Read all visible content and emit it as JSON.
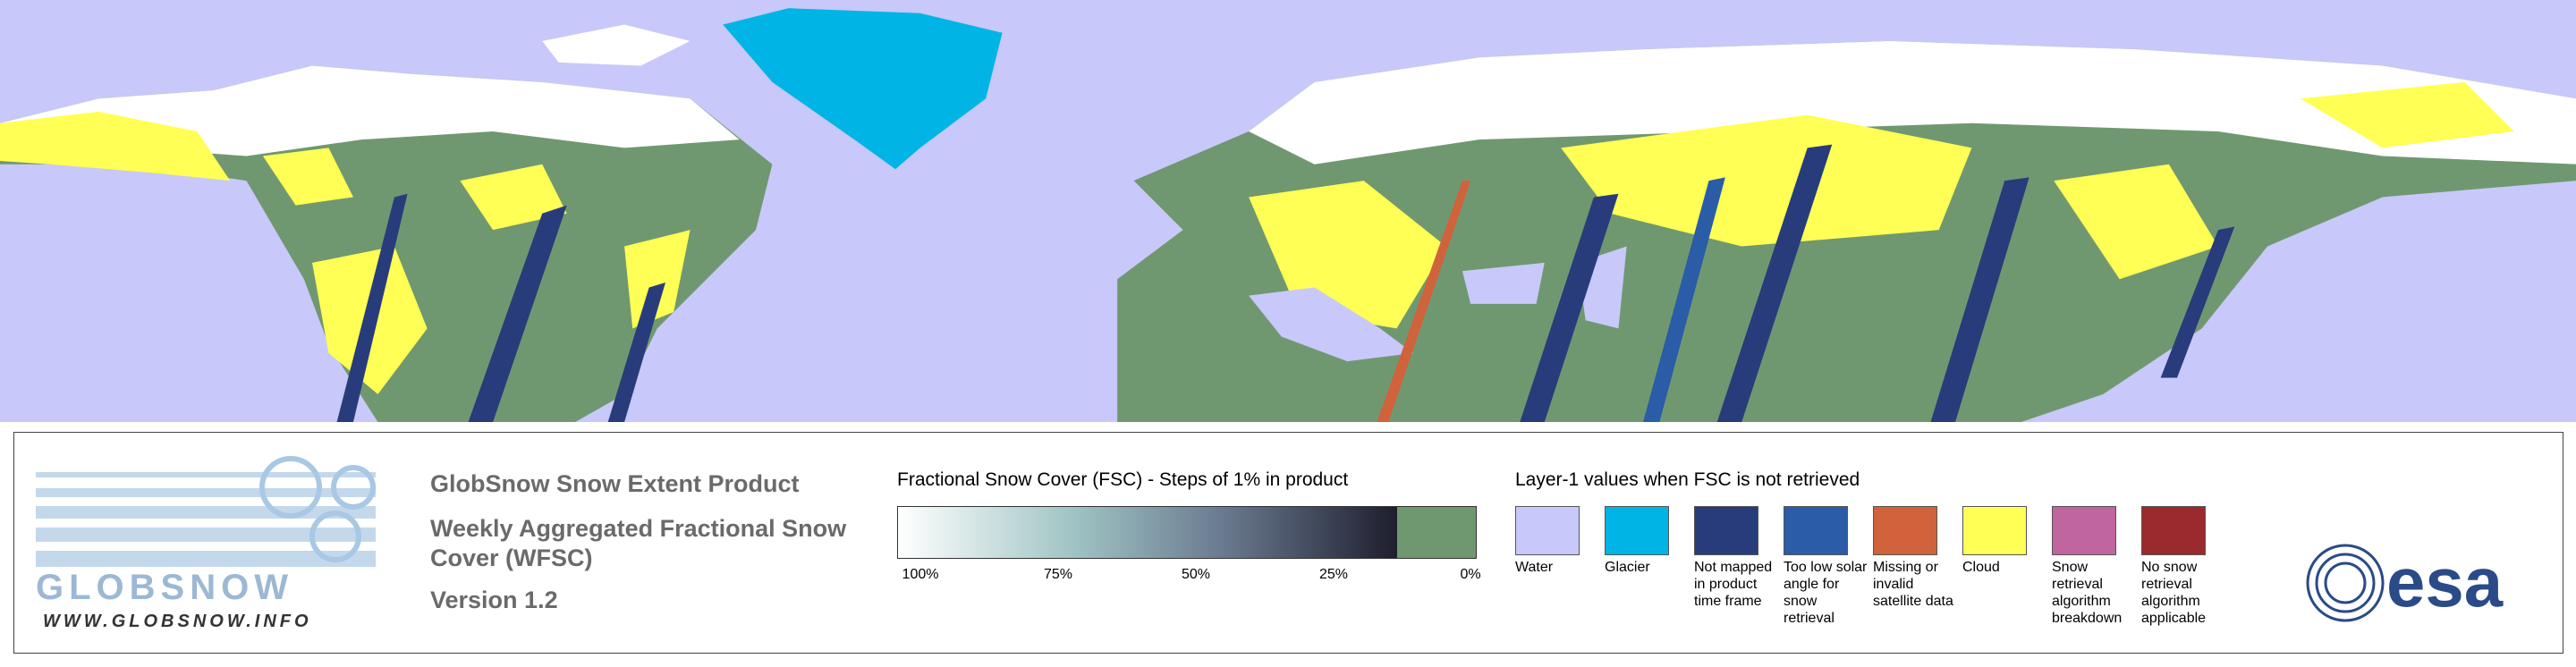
{
  "header": {
    "title": "GlobSnow Snow Extent Product",
    "subtitle": "Weekly Aggregated Fractional Snow Cover (WFSC)",
    "version": "Version 1.2"
  },
  "logo": {
    "name": "GLOBSNOW",
    "url": "WWW.GLOBSNOW.INFO",
    "agency": "esa"
  },
  "fsc_scale": {
    "title": "Fractional Snow Cover (FSC) - Steps of 1% in product",
    "ticks": [
      "100%",
      "75%",
      "50%",
      "25%",
      "0%"
    ]
  },
  "layer1": {
    "title": "Layer-1 values when FSC is not retrieved",
    "items": [
      {
        "label": "Water",
        "color": "#c8c8fa"
      },
      {
        "label": "Glacier",
        "color": "#00b4e6"
      },
      {
        "label": "Not mapped in product time frame",
        "color": "#283c7c"
      },
      {
        "label": "Too low solar angle for snow retrieval",
        "color": "#2a5ca8"
      },
      {
        "label": "Missing or invalid satellite data",
        "color": "#d0623c"
      },
      {
        "label": "Cloud",
        "color": "#ffff55"
      },
      {
        "label": "Snow retrieval algorithm breakdown",
        "color": "#c065a0"
      },
      {
        "label": "No snow retrieval algorithm applicable",
        "color": "#9a2a2e"
      }
    ]
  }
}
